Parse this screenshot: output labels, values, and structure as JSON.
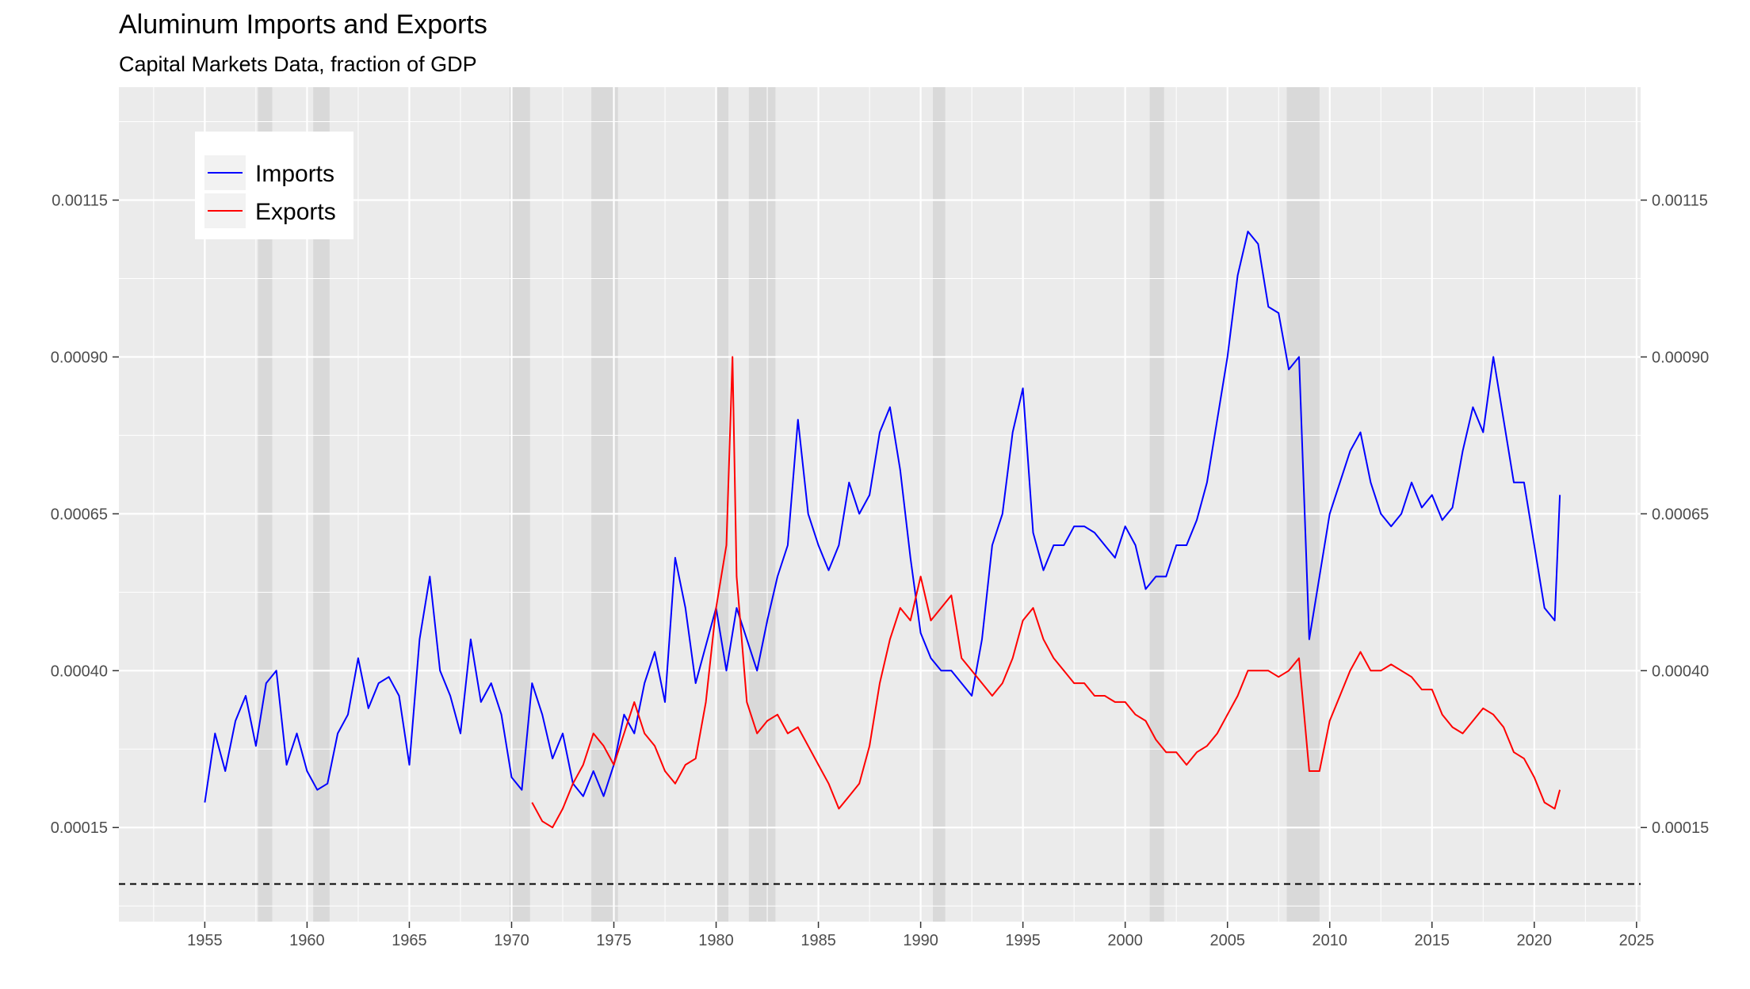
{
  "chart_data": {
    "type": "line",
    "title": "Aluminum Imports and Exports",
    "subtitle": "Capital Markets Data, fraction of GDP",
    "xlabel": "",
    "ylabel": "",
    "xlim": [
      1950.8,
      2025.2
    ],
    "ylim": [
      0.0,
      0.00133
    ],
    "x_ticks": [
      1955,
      1960,
      1965,
      1970,
      1975,
      1980,
      1985,
      1990,
      1995,
      2000,
      2005,
      2010,
      2015,
      2020,
      2025
    ],
    "y_ticks": [
      0.00015,
      0.0004,
      0.00065,
      0.0009,
      0.00115
    ],
    "y_tick_labels": [
      "0.00015",
      "0.00040",
      "0.00065",
      "0.00090",
      "0.00115"
    ],
    "secondary_y_axis": true,
    "grid": true,
    "legend_position": "top-left",
    "reference_line": 6e-05,
    "recessions": [
      [
        1957.6,
        1958.3
      ],
      [
        1960.3,
        1961.1
      ],
      [
        1969.9,
        1970.9
      ],
      [
        1973.9,
        1975.2
      ],
      [
        1980.0,
        1980.6
      ],
      [
        1981.6,
        1982.9
      ],
      [
        1990.6,
        1991.2
      ],
      [
        2001.2,
        2001.9
      ],
      [
        2007.9,
        2009.5
      ]
    ],
    "series": [
      {
        "name": "Imports",
        "color": "#0000ff",
        "x": [
          1955.0,
          1955.5,
          1956.0,
          1956.5,
          1957.0,
          1957.5,
          1958.0,
          1958.5,
          1959.0,
          1959.5,
          1960.0,
          1960.5,
          1961.0,
          1961.5,
          1962.0,
          1962.5,
          1963.0,
          1963.5,
          1964.0,
          1964.5,
          1965.0,
          1965.5,
          1966.0,
          1966.5,
          1967.0,
          1967.5,
          1968.0,
          1968.5,
          1969.0,
          1969.5,
          1970.0,
          1970.5,
          1971.0,
          1971.5,
          1972.0,
          1972.5,
          1973.0,
          1973.5,
          1974.0,
          1974.5,
          1975.0,
          1975.5,
          1976.0,
          1976.5,
          1977.0,
          1977.5,
          1978.0,
          1978.5,
          1979.0,
          1979.5,
          1980.0,
          1980.5,
          1981.0,
          1981.5,
          1982.0,
          1982.5,
          1983.0,
          1983.5,
          1984.0,
          1984.5,
          1985.0,
          1985.5,
          1986.0,
          1986.5,
          1987.0,
          1987.5,
          1988.0,
          1988.5,
          1989.0,
          1989.5,
          1990.0,
          1990.5,
          1991.0,
          1991.5,
          1992.0,
          1992.5,
          1993.0,
          1993.5,
          1994.0,
          1994.5,
          1995.0,
          1995.5,
          1996.0,
          1996.5,
          1997.0,
          1997.5,
          1998.0,
          1998.5,
          1999.0,
          1999.5,
          2000.0,
          2000.5,
          2001.0,
          2001.5,
          2002.0,
          2002.5,
          2003.0,
          2003.5,
          2004.0,
          2004.5,
          2005.0,
          2005.5,
          2006.0,
          2006.5,
          2007.0,
          2007.5,
          2008.0,
          2008.5,
          2009.0,
          2009.5,
          2010.0,
          2010.5,
          2011.0,
          2011.5,
          2012.0,
          2012.5,
          2013.0,
          2013.5,
          2014.0,
          2014.5,
          2015.0,
          2015.5,
          2016.0,
          2016.5,
          2017.0,
          2017.5,
          2018.0,
          2018.5,
          2019.0,
          2019.5,
          2020.0,
          2020.5,
          2021.0,
          2021.25
        ],
        "values": [
          0.00019,
          0.0003,
          0.00024,
          0.00032,
          0.00036,
          0.00028,
          0.00038,
          0.0004,
          0.00025,
          0.0003,
          0.00024,
          0.00021,
          0.00022,
          0.0003,
          0.00033,
          0.00042,
          0.00034,
          0.00038,
          0.00039,
          0.00036,
          0.00025,
          0.00045,
          0.00055,
          0.0004,
          0.00036,
          0.0003,
          0.00045,
          0.00035,
          0.00038,
          0.00033,
          0.00023,
          0.00021,
          0.00038,
          0.00033,
          0.00026,
          0.0003,
          0.00022,
          0.0002,
          0.00024,
          0.0002,
          0.00025,
          0.00033,
          0.0003,
          0.00038,
          0.00043,
          0.00035,
          0.00058,
          0.0005,
          0.00038,
          0.00044,
          0.0005,
          0.0004,
          0.0005,
          0.00045,
          0.0004,
          0.00048,
          0.00055,
          0.0006,
          0.0008,
          0.00065,
          0.0006,
          0.00056,
          0.0006,
          0.0007,
          0.00065,
          0.00068,
          0.00078,
          0.00082,
          0.00072,
          0.00058,
          0.00046,
          0.00042,
          0.0004,
          0.0004,
          0.00038,
          0.00036,
          0.00045,
          0.0006,
          0.00065,
          0.00078,
          0.00085,
          0.00062,
          0.00056,
          0.0006,
          0.0006,
          0.00063,
          0.00063,
          0.00062,
          0.0006,
          0.00058,
          0.00063,
          0.0006,
          0.00053,
          0.00055,
          0.00055,
          0.0006,
          0.0006,
          0.00064,
          0.0007,
          0.0008,
          0.0009,
          0.00103,
          0.0011,
          0.00108,
          0.00098,
          0.00097,
          0.00088,
          0.0009,
          0.00045,
          0.00055,
          0.00065,
          0.0007,
          0.00075,
          0.00078,
          0.0007,
          0.00065,
          0.00063,
          0.00065,
          0.0007,
          0.00066,
          0.00068,
          0.00064,
          0.00066,
          0.00075,
          0.00082,
          0.00078,
          0.0009,
          0.0008,
          0.0007,
          0.0007,
          0.0006,
          0.0005,
          0.00048,
          0.00068
        ]
      },
      {
        "name": "Exports",
        "color": "#ff0000",
        "x": [
          1971.0,
          1971.5,
          1972.0,
          1972.5,
          1973.0,
          1973.5,
          1974.0,
          1974.5,
          1975.0,
          1975.5,
          1976.0,
          1976.5,
          1977.0,
          1977.5,
          1978.0,
          1978.5,
          1979.0,
          1979.5,
          1980.0,
          1980.5,
          1980.8,
          1981.0,
          1981.5,
          1982.0,
          1982.5,
          1983.0,
          1983.5,
          1984.0,
          1984.5,
          1985.0,
          1985.5,
          1986.0,
          1986.5,
          1987.0,
          1987.5,
          1988.0,
          1988.5,
          1989.0,
          1989.5,
          1990.0,
          1990.5,
          1991.0,
          1991.5,
          1992.0,
          1992.5,
          1993.0,
          1993.5,
          1994.0,
          1994.5,
          1995.0,
          1995.5,
          1996.0,
          1996.5,
          1997.0,
          1997.5,
          1998.0,
          1998.5,
          1999.0,
          1999.5,
          2000.0,
          2000.5,
          2001.0,
          2001.5,
          2002.0,
          2002.5,
          2003.0,
          2003.5,
          2004.0,
          2004.5,
          2005.0,
          2005.5,
          2006.0,
          2006.5,
          2007.0,
          2007.5,
          2008.0,
          2008.5,
          2009.0,
          2009.5,
          2010.0,
          2010.5,
          2011.0,
          2011.5,
          2012.0,
          2012.5,
          2013.0,
          2013.5,
          2014.0,
          2014.5,
          2015.0,
          2015.5,
          2016.0,
          2016.5,
          2017.0,
          2017.5,
          2018.0,
          2018.5,
          2019.0,
          2019.5,
          2020.0,
          2020.5,
          2021.0,
          2021.25
        ],
        "values": [
          0.00019,
          0.00016,
          0.00015,
          0.00018,
          0.00022,
          0.00025,
          0.0003,
          0.00028,
          0.00025,
          0.0003,
          0.00035,
          0.0003,
          0.00028,
          0.00024,
          0.00022,
          0.00025,
          0.00026,
          0.00035,
          0.0005,
          0.0006,
          0.0009,
          0.00055,
          0.00035,
          0.0003,
          0.00032,
          0.00033,
          0.0003,
          0.00031,
          0.00028,
          0.00025,
          0.00022,
          0.00018,
          0.0002,
          0.00022,
          0.00028,
          0.00038,
          0.00045,
          0.0005,
          0.00048,
          0.00055,
          0.00048,
          0.0005,
          0.00052,
          0.00042,
          0.0004,
          0.00038,
          0.00036,
          0.00038,
          0.00042,
          0.00048,
          0.0005,
          0.00045,
          0.00042,
          0.0004,
          0.00038,
          0.00038,
          0.00036,
          0.00036,
          0.00035,
          0.00035,
          0.00033,
          0.00032,
          0.00029,
          0.00027,
          0.00027,
          0.00025,
          0.00027,
          0.00028,
          0.0003,
          0.00033,
          0.00036,
          0.0004,
          0.0004,
          0.0004,
          0.00039,
          0.0004,
          0.00042,
          0.00024,
          0.00024,
          0.00032,
          0.00036,
          0.0004,
          0.00043,
          0.0004,
          0.0004,
          0.00041,
          0.0004,
          0.00039,
          0.00037,
          0.00037,
          0.00033,
          0.00031,
          0.0003,
          0.00032,
          0.00034,
          0.00033,
          0.00031,
          0.00027,
          0.00026,
          0.00023,
          0.00019,
          0.00018,
          0.00021
        ]
      }
    ]
  }
}
